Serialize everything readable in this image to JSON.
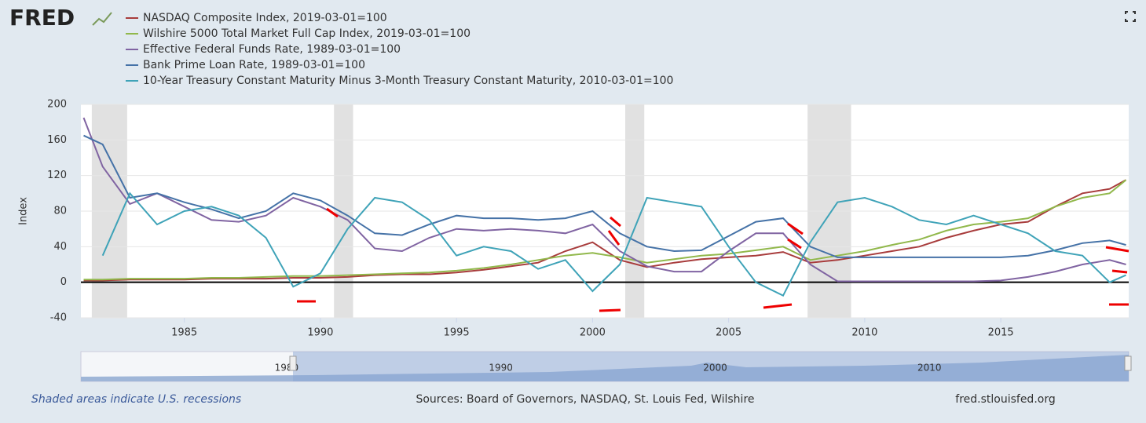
{
  "logo": "FRED",
  "chart_data": {
    "type": "line",
    "y_label": "Index",
    "x": [
      1981.3,
      1982,
      1983,
      1984,
      1985,
      1986,
      1987,
      1988,
      1989,
      1990,
      1991,
      1992,
      1993,
      1994,
      1995,
      1996,
      1997,
      1998,
      1999,
      2000,
      2001,
      2002,
      2003,
      2004,
      2005,
      2006,
      2007,
      2008,
      2009,
      2010,
      2011,
      2012,
      2013,
      2014,
      2015,
      2016,
      2017,
      2018,
      2019,
      2019.6
    ],
    "series": [
      {
        "name": "NASDAQ Composite Index, 2019-03-01=100",
        "color": "#a83c3c",
        "values": [
          2,
          2,
          3,
          3,
          3,
          4,
          4,
          4,
          5,
          5,
          6,
          8,
          9,
          9,
          11,
          14,
          18,
          22,
          35,
          45,
          25,
          17,
          22,
          26,
          28,
          30,
          34,
          22,
          25,
          30,
          35,
          40,
          50,
          58,
          65,
          68,
          85,
          100,
          105,
          115
        ]
      },
      {
        "name": "Wilshire 5000 Total Market Full Cap Index, 2019-03-01=100",
        "color": "#91b84b",
        "values": [
          3,
          3,
          4,
          4,
          4,
          5,
          5,
          6,
          7,
          7,
          8,
          9,
          10,
          11,
          13,
          16,
          20,
          25,
          30,
          33,
          28,
          22,
          26,
          30,
          32,
          36,
          40,
          25,
          30,
          35,
          42,
          48,
          58,
          65,
          68,
          72,
          85,
          95,
          100,
          115
        ]
      },
      {
        "name": "Effective Federal Funds Rate, 1989-03-01=100",
        "color": "#8064a2",
        "values": [
          185,
          130,
          88,
          100,
          85,
          70,
          68,
          75,
          95,
          85,
          70,
          38,
          35,
          50,
          60,
          58,
          60,
          58,
          55,
          65,
          35,
          18,
          12,
          12,
          35,
          55,
          55,
          20,
          1,
          1,
          1,
          1,
          1,
          1,
          2,
          6,
          12,
          20,
          25,
          20
        ]
      },
      {
        "name": "Bank Prime Loan Rate, 1989-03-01=100",
        "color": "#4572a7",
        "values": [
          165,
          155,
          95,
          100,
          90,
          82,
          72,
          80,
          100,
          92,
          75,
          55,
          53,
          65,
          75,
          72,
          72,
          70,
          72,
          80,
          55,
          40,
          35,
          36,
          52,
          68,
          72,
          40,
          28,
          28,
          28,
          28,
          28,
          28,
          28,
          30,
          36,
          44,
          47,
          42
        ]
      },
      {
        "name": "10-Year Treasury Constant Maturity Minus 3-Month Treasury Constant Maturity, 2010-03-01=100",
        "color": "#3fa3b8",
        "values": [
          null,
          30,
          100,
          65,
          80,
          85,
          75,
          50,
          -5,
          10,
          60,
          95,
          90,
          70,
          30,
          40,
          35,
          15,
          25,
          -10,
          20,
          95,
          90,
          85,
          40,
          0,
          -15,
          45,
          90,
          95,
          85,
          70,
          65,
          75,
          65,
          55,
          35,
          30,
          0,
          8
        ]
      }
    ],
    "recessions": [
      [
        1981.6,
        1982.9
      ],
      [
        1990.5,
        1991.2
      ],
      [
        2001.2,
        2001.9
      ],
      [
        2007.9,
        2009.5
      ]
    ],
    "xlim": [
      1981.2,
      2019.7
    ],
    "xticks": [
      1985,
      1990,
      1995,
      2000,
      2005,
      2010,
      2015
    ],
    "ylim": [
      -40,
      200
    ],
    "yticks": [
      -40,
      0,
      40,
      80,
      120,
      160,
      200
    ],
    "grid": true,
    "navigator": {
      "xlim": [
        1970.4,
        2019.3
      ],
      "xticks": [
        1980,
        1990,
        2000,
        2010
      ]
    }
  },
  "footer": {
    "note": "Shaded areas indicate U.S. recessions",
    "sources": "Sources: Board of Governors, NASDAQ, St. Louis Fed, Wilshire",
    "site": "fred.stlouisfed.org"
  }
}
